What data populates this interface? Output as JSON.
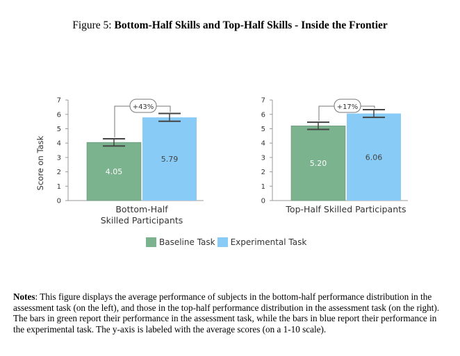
{
  "figure": {
    "label": "Figure 5:",
    "title": "Bottom-Half Skills and Top-Half Skills - Inside the Frontier"
  },
  "colors": {
    "baseline": "#7cb38f",
    "experimental": "#87cbf6"
  },
  "legend": {
    "baseline": "Baseline Task",
    "experimental": "Experimental Task"
  },
  "chart_data": [
    {
      "type": "bar",
      "categories": [
        "Bottom-Half Skilled Participants"
      ],
      "category_lines": [
        "Bottom-Half",
        "Skilled Participants"
      ],
      "series": [
        {
          "name": "Baseline Task",
          "values": [
            4.05
          ],
          "error": [
            0.25
          ]
        },
        {
          "name": "Experimental Task",
          "values": [
            5.79
          ],
          "error": [
            0.27
          ]
        }
      ],
      "value_labels": [
        "4.05",
        "5.79"
      ],
      "annotation": "+43%",
      "ylabel": "Score on Task",
      "ylim": [
        0,
        7
      ],
      "yticks": [
        "0",
        "1",
        "2",
        "3",
        "4",
        "5",
        "6",
        "7"
      ],
      "legend_position": "bottom"
    },
    {
      "type": "bar",
      "categories": [
        "Top-Half Skilled Participants"
      ],
      "category_lines": [
        "Top-Half Skilled Participants"
      ],
      "series": [
        {
          "name": "Baseline Task",
          "values": [
            5.2
          ],
          "error": [
            0.25
          ]
        },
        {
          "name": "Experimental Task",
          "values": [
            6.06
          ],
          "error": [
            0.27
          ]
        }
      ],
      "value_labels": [
        "5.20",
        "6.06"
      ],
      "annotation": "+17%",
      "ylim": [
        0,
        7
      ],
      "yticks": [
        "0",
        "1",
        "2",
        "3",
        "4",
        "5",
        "6",
        "7"
      ],
      "legend_position": "bottom"
    }
  ],
  "notes": {
    "label": "Notes",
    "text": ": This figure displays the average performance of subjects in the bottom-half performance distribution in the assessment task (on the left), and those in the top-half performance distribution in the assessment task (on the right). The bars in green report their performance in the assessment task, while the bars in blue report their performance in the experimental task. The y-axis is labeled with the average scores (on a 1-10 scale)."
  }
}
